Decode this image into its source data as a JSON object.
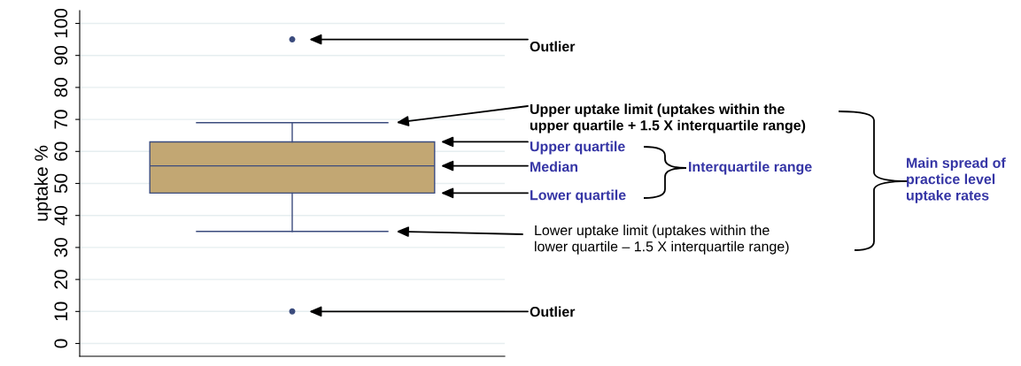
{
  "chart_data": {
    "type": "box",
    "ylabel": "uptake %",
    "categories": [
      null
    ],
    "series": [
      {
        "color": "#c2a773",
        "boxes": [
          {
            "low": 35,
            "q1": 47,
            "median": 55.5,
            "q3": 63,
            "high": 69,
            "outliers": [
              95,
              10
            ]
          }
        ]
      }
    ],
    "ylim": [
      -4,
      104
    ],
    "yticks": [
      0,
      10,
      20,
      30,
      40,
      50,
      60,
      70,
      80,
      90,
      100
    ],
    "grid": "y",
    "annotations": [
      "Outlier",
      "Upper uptake limit (uptakes within the\nupper quartile + 1.5 X interquartile range)",
      "Upper quartile",
      "Median",
      "Lower quartile",
      "Lower uptake limit (uptakes within the\nlower quartile – 1.5 X interquartile range)",
      "Outlier",
      "Interquartile range",
      "Main spread of\npractice level\nuptake rates"
    ]
  }
}
